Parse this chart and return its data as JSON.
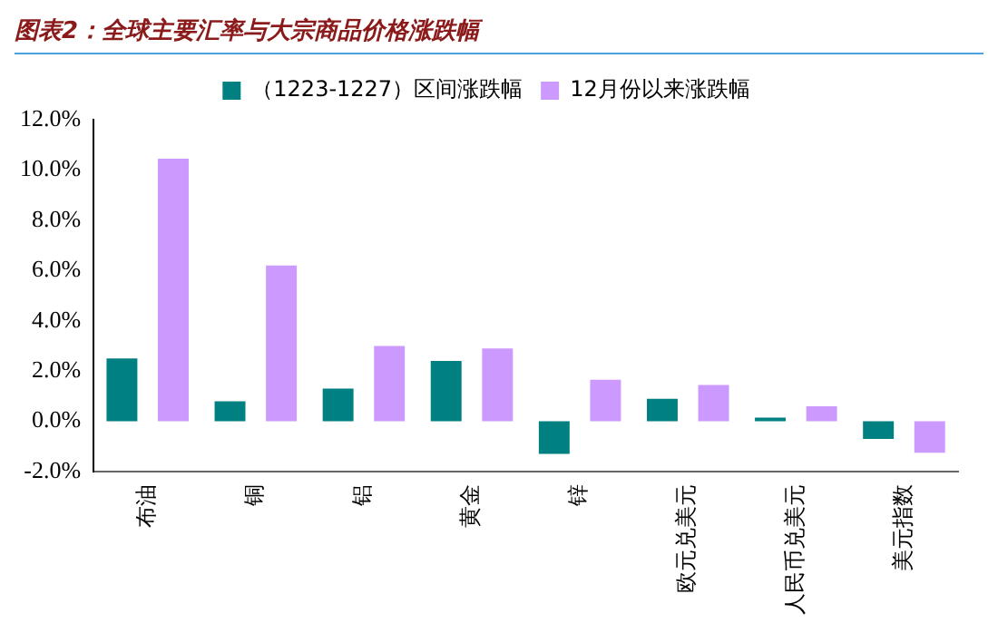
{
  "chart_data": {
    "type": "bar",
    "title": "图表2：全球主要汇率与大宗商品价格涨跌幅",
    "categories": [
      "布油",
      "铜",
      "铝",
      "黄金",
      "锌",
      "欧元兑美元",
      "人民币兑美元",
      "美元指数"
    ],
    "series": [
      {
        "name": "（1223-1227）区间涨跌幅",
        "color": "#008080",
        "values": [
          2.5,
          0.8,
          1.3,
          2.4,
          -1.3,
          0.9,
          0.15,
          -0.7
        ]
      },
      {
        "name": "12月份以来涨跌幅",
        "color": "#cc99ff",
        "values": [
          10.45,
          6.2,
          3.0,
          2.9,
          1.65,
          1.45,
          0.6,
          -1.25
        ]
      }
    ],
    "ylim": [
      -2,
      12
    ],
    "yticks": [
      {
        "value": -2,
        "label": "-2.0%"
      },
      {
        "value": 0,
        "label": "0.0%"
      },
      {
        "value": 2,
        "label": "2.0%"
      },
      {
        "value": 4,
        "label": "4.0%"
      },
      {
        "value": 6,
        "label": "6.0%"
      },
      {
        "value": 8,
        "label": "8.0%"
      },
      {
        "value": 10,
        "label": "10.0%"
      },
      {
        "value": 12,
        "label": "12.0%"
      }
    ],
    "grid": false,
    "legend": "top"
  }
}
